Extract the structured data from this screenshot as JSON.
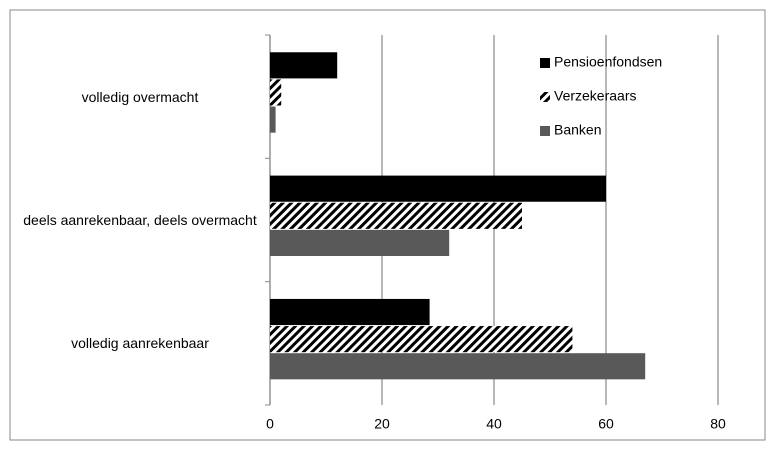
{
  "chart_data": {
    "type": "bar",
    "orientation": "horizontal",
    "categories": [
      "volledig overmacht",
      "deels aanrekenbaar, deels overmacht",
      "volledig aanrekenbaar"
    ],
    "series": [
      {
        "name": "Pensioenfondsen",
        "color": "#000000",
        "values": [
          12,
          60,
          28.5
        ]
      },
      {
        "name": "Verzekeraars",
        "color": "#000000",
        "pattern": "hatch",
        "values": [
          2,
          45,
          54
        ]
      },
      {
        "name": "Banken",
        "color": "#595959",
        "values": [
          1,
          32,
          67
        ]
      }
    ],
    "xlim": [
      0,
      80
    ],
    "xticks": [
      0,
      20,
      40,
      60,
      80
    ],
    "grid": true,
    "legend": "upper right"
  }
}
